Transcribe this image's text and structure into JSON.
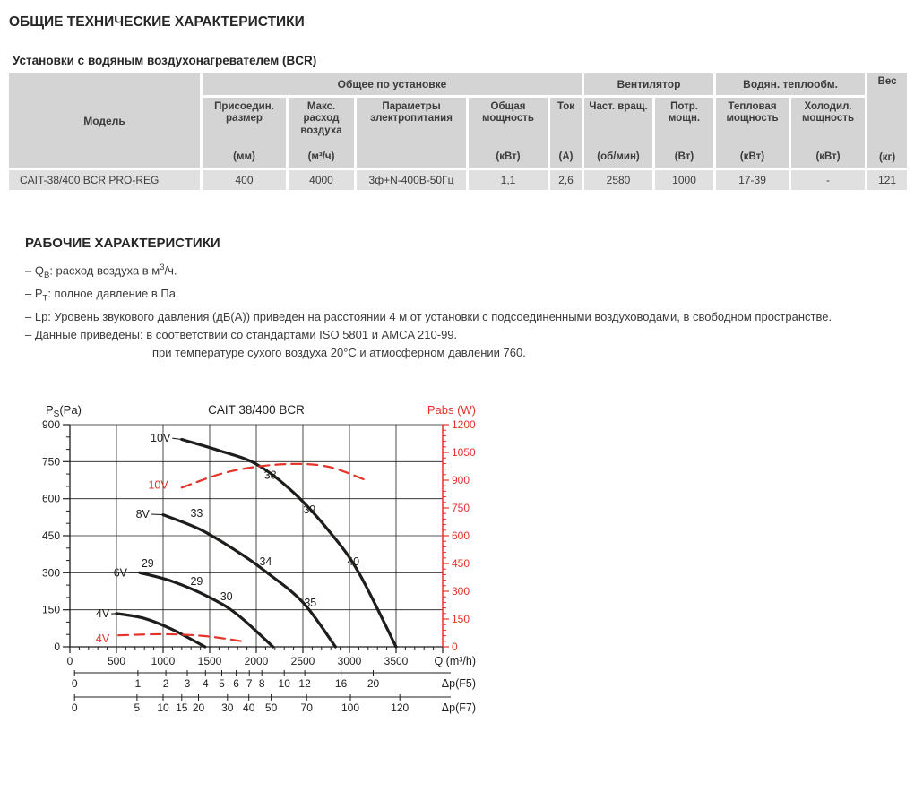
{
  "page": {
    "title": "ОБЩИЕ ТЕХНИЧЕСКИЕ ХАРАКТЕРИСТИКИ",
    "subtitle": "Установки с водяным воздухонагревателем (BCR)"
  },
  "table": {
    "group_headers": {
      "model": "Модель",
      "general": "Общее по установке",
      "fan": "Вентилятор",
      "water": "Водян. теплообм.",
      "weight": "Вес"
    },
    "weight_unit": "(кг)",
    "columns": [
      {
        "name": "Присоедин. размер",
        "unit": "(мм)"
      },
      {
        "name": "Макс. расход воздуха",
        "unit": "(м³/ч)"
      },
      {
        "name": "Параметры электропитания",
        "unit": ""
      },
      {
        "name": "Общая мощность",
        "unit": "(кВт)"
      },
      {
        "name": "Ток",
        "unit": "(А)"
      },
      {
        "name": "Част. вращ.",
        "unit": "(об/мин)"
      },
      {
        "name": "Потр. мощн.",
        "unit": "(Вт)"
      },
      {
        "name": "Тепловая мощность",
        "unit": "(кВт)"
      },
      {
        "name": "Холодил. мощность",
        "unit": "(кВт)"
      }
    ],
    "row": {
      "model": "CAIT-38/400 BCR PRO-REG",
      "values": [
        "400",
        "4000",
        "3ф+N-400В-50Гц",
        "1,1",
        "2,6",
        "2580",
        "1000",
        "17-39",
        "-",
        "121"
      ]
    }
  },
  "working": {
    "title": "РАБОЧИЕ ХАРАКТЕРИСТИКИ",
    "bullets": [
      {
        "indent": false,
        "segments": [
          {
            "t": "– Q"
          },
          {
            "t": "В",
            "s": "sub"
          },
          {
            "t": ": расход воздуха в м"
          },
          {
            "t": "3",
            "s": "sup"
          },
          {
            "t": "/ч."
          }
        ]
      },
      {
        "indent": false,
        "segments": [
          {
            "t": "– P"
          },
          {
            "t": "Т",
            "s": "sub"
          },
          {
            "t": ": полное давление в Па."
          }
        ]
      },
      {
        "indent": false,
        "segments": [
          {
            "t": "– Lp: Уровень звукового давления (дБ(А)) приведен на расстоянии 4 м от установки с подсоединенными воздуховодами, в свободном пространстве."
          }
        ]
      },
      {
        "indent": false,
        "segments": [
          {
            "t": "– Данные приведены:  в соответствии со стандартами ISO 5801 и AMCA 210-99."
          }
        ]
      },
      {
        "indent": true,
        "segments": [
          {
            "t": "при температуре сухого воздуха 20°C и атмосферном давлении 760."
          }
        ]
      }
    ]
  },
  "chart_data": {
    "type": "line",
    "title": "CAIT 38/400 BCR",
    "colors": {
      "dark": "#1d1d1b",
      "red": "#e63329"
    },
    "x_axis": {
      "label": "Q (m³/h)",
      "min": 0,
      "max": 4000,
      "major": 500,
      "minor": 100,
      "last_label": 3500
    },
    "left_axis": {
      "label_parts": [
        "P",
        "S",
        "(Pa)"
      ],
      "min": 0,
      "max": 900,
      "major": 150,
      "minor": 50
    },
    "right_axis": {
      "label": "Pabs (W)",
      "min": 0,
      "max": 1200,
      "major": 150,
      "minor": 30
    },
    "series": [
      {
        "name": "10V",
        "line": "solid",
        "axis": "left",
        "color": "dark",
        "points": [
          [
            1200,
            840
          ],
          [
            1600,
            795
          ],
          [
            2000,
            740
          ],
          [
            2400,
            625
          ],
          [
            2800,
            460
          ],
          [
            3100,
            300
          ],
          [
            3500,
            0
          ]
        ]
      },
      {
        "name": "8V",
        "line": "solid",
        "axis": "left",
        "color": "dark",
        "points": [
          [
            1000,
            535
          ],
          [
            1400,
            475
          ],
          [
            1800,
            385
          ],
          [
            2100,
            305
          ],
          [
            2500,
            180
          ],
          [
            2850,
            0
          ]
        ]
      },
      {
        "name": "6V",
        "line": "solid",
        "axis": "left",
        "color": "dark",
        "points": [
          [
            750,
            300
          ],
          [
            1100,
            265
          ],
          [
            1500,
            200
          ],
          [
            1800,
            130
          ],
          [
            2180,
            0
          ]
        ]
      },
      {
        "name": "4V",
        "line": "solid",
        "axis": "left",
        "color": "dark",
        "points": [
          [
            500,
            135
          ],
          [
            800,
            115
          ],
          [
            1100,
            70
          ],
          [
            1450,
            0
          ]
        ]
      },
      {
        "name": "10V",
        "line": "dashed",
        "axis": "right",
        "color": "red",
        "points": [
          [
            1200,
            860
          ],
          [
            1700,
            945
          ],
          [
            2250,
            985
          ],
          [
            2750,
            975
          ],
          [
            3200,
            895
          ]
        ]
      },
      {
        "name": "4V",
        "line": "dashed",
        "axis": "right",
        "color": "red",
        "points": [
          [
            520,
            62
          ],
          [
            1000,
            68
          ],
          [
            1450,
            58
          ],
          [
            1875,
            28
          ]
        ]
      }
    ],
    "series_labels": [
      {
        "text": "10V",
        "color": "dark",
        "q": 1080,
        "p": 845,
        "leader_to": [
          1200,
          840
        ],
        "leader_axis": "left"
      },
      {
        "text": "8V",
        "color": "dark",
        "q": 855,
        "p": 537,
        "leader_to": [
          1000,
          535
        ],
        "leader_axis": "left"
      },
      {
        "text": "6V",
        "color": "dark",
        "q": 615,
        "p": 300,
        "leader_to": [
          750,
          300
        ],
        "leader_axis": "left"
      },
      {
        "text": "4V",
        "color": "dark",
        "q": 425,
        "p": 134,
        "leader_to": [
          500,
          135
        ],
        "leader_axis": "left"
      },
      {
        "text": "10V",
        "color": "red",
        "q": 1055,
        "p": 655
      },
      {
        "text": "4V",
        "color": "red",
        "q": 425,
        "p": 33
      }
    ],
    "noise_labels": [
      {
        "text": "38",
        "q": 2150,
        "p": 695
      },
      {
        "text": "39",
        "q": 2570,
        "p": 555
      },
      {
        "text": "40",
        "q": 3040,
        "p": 345
      },
      {
        "text": "33",
        "q": 1360,
        "p": 540
      },
      {
        "text": "34",
        "q": 2100,
        "p": 345
      },
      {
        "text": "35",
        "q": 2580,
        "p": 178
      },
      {
        "text": "29",
        "q": 835,
        "p": 338
      },
      {
        "text": "29",
        "q": 1360,
        "p": 265
      },
      {
        "text": "30",
        "q": 1680,
        "p": 203
      }
    ],
    "sub_axes": [
      {
        "label": "Δp(F5)",
        "y_offset": 29,
        "x_start": 50,
        "ticks": [
          [
            "0",
            50
          ],
          [
            "1",
            730
          ],
          [
            "2",
            1030
          ],
          [
            "3",
            1260
          ],
          [
            "4",
            1455
          ],
          [
            "5",
            1630
          ],
          [
            "6",
            1785
          ],
          [
            "7",
            1925
          ],
          [
            "8",
            2060
          ],
          [
            "10",
            2300
          ],
          [
            "12",
            2520
          ],
          [
            "16",
            2910
          ],
          [
            "20",
            3255
          ]
        ]
      },
      {
        "label": "Δp(F7)",
        "y_offset": 56,
        "x_start": 50,
        "ticks": [
          [
            "0",
            50
          ],
          [
            "5",
            720
          ],
          [
            "10",
            1000
          ],
          [
            "15",
            1200
          ],
          [
            "20",
            1380
          ],
          [
            "30",
            1690
          ],
          [
            "40",
            1920
          ],
          [
            "50",
            2160
          ],
          [
            "70",
            2540
          ],
          [
            "100",
            3010
          ],
          [
            "120",
            3540
          ]
        ]
      }
    ]
  }
}
